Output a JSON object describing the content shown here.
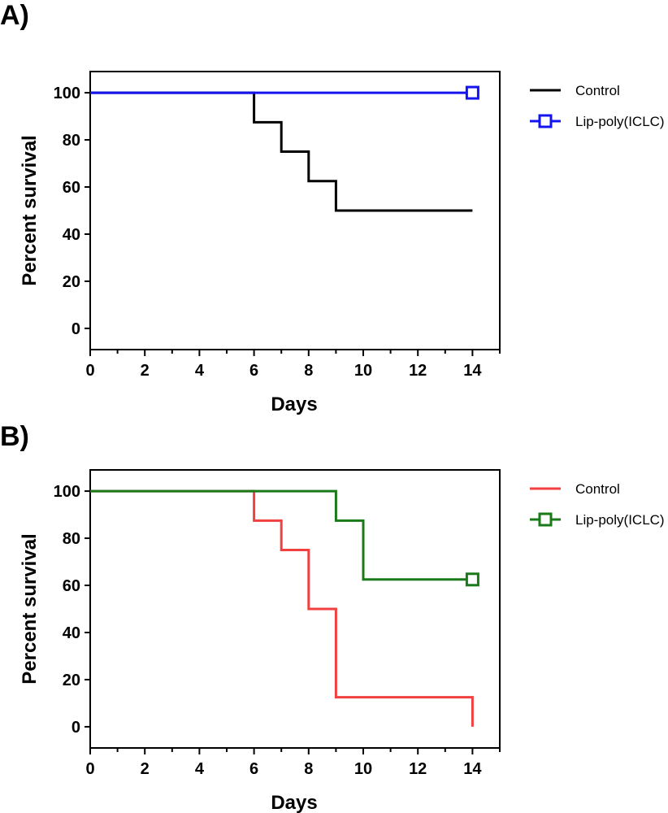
{
  "chart_data": [
    {
      "type": "line",
      "subtype": "kaplan-meier-survival",
      "panel_label": "A)",
      "xlabel": "Days",
      "ylabel": "Percent survival",
      "xlim": [
        0,
        15
      ],
      "ylim": [
        -9,
        109
      ],
      "xticks": [
        0,
        2,
        4,
        6,
        8,
        10,
        12,
        14
      ],
      "yticks": [
        0,
        20,
        40,
        60,
        80,
        100
      ],
      "legend_position": "right",
      "series": [
        {
          "name": "Control",
          "color": "#000000",
          "marker": "none",
          "x": [
            0,
            6,
            7,
            8,
            9,
            14
          ],
          "y": [
            100,
            87.5,
            75,
            62.5,
            50,
            50
          ]
        },
        {
          "name": "Lip-poly(ICLC)",
          "color": "#1414f0",
          "marker": "square",
          "x": [
            0,
            14
          ],
          "y": [
            100,
            100
          ]
        }
      ]
    },
    {
      "type": "line",
      "subtype": "kaplan-meier-survival",
      "panel_label": "B)",
      "xlabel": "Days",
      "ylabel": "Percent survival",
      "xlim": [
        0,
        15
      ],
      "ylim": [
        -9,
        109
      ],
      "xticks": [
        0,
        2,
        4,
        6,
        8,
        10,
        12,
        14
      ],
      "yticks": [
        0,
        20,
        40,
        60,
        80,
        100
      ],
      "legend_position": "right",
      "series": [
        {
          "name": "Control",
          "color": "#f04040",
          "marker": "none",
          "x": [
            0,
            6,
            7,
            8,
            9,
            14,
            14
          ],
          "y": [
            100,
            87.5,
            75,
            50,
            12.5,
            12.5,
            0
          ]
        },
        {
          "name": "Lip-poly(ICLC)",
          "color": "#1a7a1a",
          "marker": "square",
          "x": [
            0,
            9,
            10,
            14
          ],
          "y": [
            100,
            87.5,
            62.5,
            62.5
          ]
        }
      ]
    }
  ]
}
